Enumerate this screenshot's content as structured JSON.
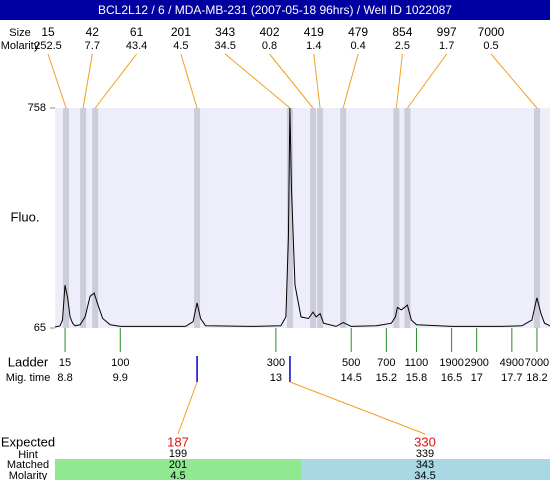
{
  "title": "BCL2L12 / 6 / MDA-MB-231 (2007-05-18 96hrs) / Well ID 1022087",
  "peaks": {
    "size_label": "Size",
    "molarity_label": "Molarity",
    "sizes": [
      15,
      42,
      61,
      201,
      343,
      402,
      419,
      479,
      854,
      997,
      7000
    ],
    "molarities": [
      252.5,
      7.7,
      43.4,
      4.5,
      34.5,
      0.8,
      1.4,
      0.4,
      2.5,
      1.7,
      0.5
    ],
    "times": [
      8.82,
      9.16,
      9.4,
      11.43,
      13.28,
      13.74,
      13.88,
      14.34,
      15.4,
      15.62,
      18.2
    ]
  },
  "chart_data": {
    "type": "line",
    "y_label": "Fluo.",
    "ylim": [
      65,
      758
    ],
    "yticks": [
      65,
      758
    ],
    "xlim": [
      8.6,
      18.46
    ],
    "color": "#000000",
    "x": [
      8.6,
      8.7,
      8.75,
      8.8,
      8.85,
      8.9,
      8.95,
      9.0,
      9.1,
      9.2,
      9.3,
      9.38,
      9.45,
      9.55,
      9.7,
      9.9,
      10.5,
      11.2,
      11.35,
      11.43,
      11.5,
      11.6,
      12.5,
      13.1,
      13.2,
      13.25,
      13.28,
      13.31,
      13.38,
      13.5,
      13.65,
      13.74,
      13.8,
      13.88,
      13.95,
      14.2,
      14.34,
      14.5,
      15.0,
      15.3,
      15.38,
      15.42,
      15.5,
      15.62,
      15.7,
      15.8,
      16.5,
      17.5,
      17.9,
      18.1,
      18.2,
      18.28,
      18.35,
      18.46
    ],
    "values": [
      68,
      72,
      90,
      200,
      160,
      100,
      80,
      72,
      75,
      100,
      165,
      175,
      140,
      95,
      75,
      70,
      70,
      70,
      85,
      144,
      95,
      72,
      70,
      72,
      100,
      350,
      758,
      500,
      200,
      100,
      95,
      115,
      100,
      110,
      80,
      70,
      82,
      70,
      72,
      80,
      100,
      130,
      122,
      137,
      90,
      75,
      70,
      70,
      72,
      90,
      160,
      110,
      80,
      72
    ]
  },
  "ladder": {
    "label": "Ladder",
    "time_label": "Mig. time",
    "sizes": [
      15,
      100,
      300,
      500,
      700,
      1100,
      1900,
      2900,
      4900,
      7000
    ],
    "times": [
      8.8,
      9.9,
      13,
      14.5,
      15.2,
      15.8,
      16.5,
      17,
      17.7,
      18.2
    ]
  },
  "expected": {
    "label": "Expected",
    "hint_label": "Hint",
    "matched_label": "Matched",
    "molarity_label": "Molarity",
    "values": [
      187,
      330
    ],
    "hints": [
      199,
      339
    ],
    "matched": [
      201,
      343
    ],
    "molarities": [
      4.5,
      34.5
    ],
    "times": [
      11.43,
      13.28
    ]
  }
}
